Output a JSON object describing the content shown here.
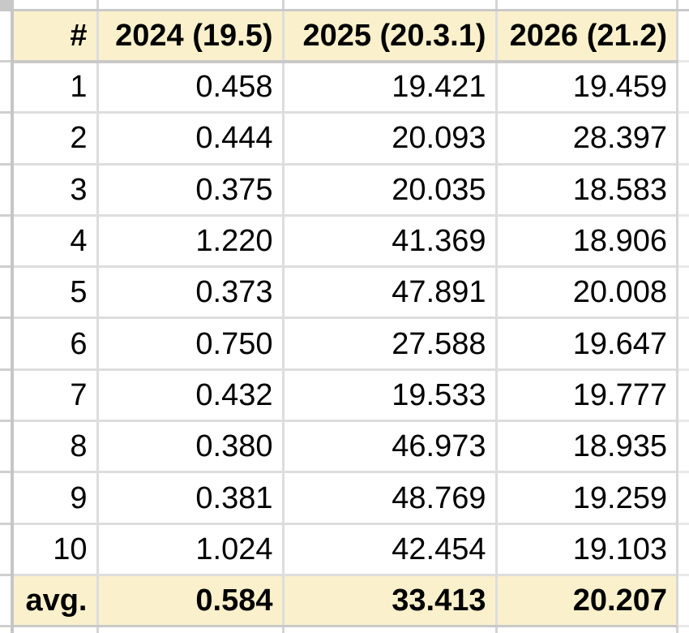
{
  "chart_data": {
    "type": "table",
    "columns": [
      "#",
      "2024 (19.5)",
      "2025 (20.3.1)",
      "2026 (21.2)"
    ],
    "rows": [
      [
        "1",
        "0.458",
        "19.421",
        "19.459"
      ],
      [
        "2",
        "0.444",
        "20.093",
        "28.397"
      ],
      [
        "3",
        "0.375",
        "20.035",
        "18.583"
      ],
      [
        "4",
        "1.220",
        "41.369",
        "18.906"
      ],
      [
        "5",
        "0.373",
        "47.891",
        "20.008"
      ],
      [
        "6",
        "0.750",
        "27.588",
        "19.647"
      ],
      [
        "7",
        "0.432",
        "19.533",
        "19.777"
      ],
      [
        "8",
        "0.380",
        "46.973",
        "18.935"
      ],
      [
        "9",
        "0.381",
        "48.769",
        "19.259"
      ],
      [
        "10",
        "1.024",
        "42.454",
        "19.103"
      ]
    ],
    "footer_row": [
      "avg.",
      "0.584",
      "33.413",
      "20.207"
    ],
    "layout": {
      "header_row_shaded": true,
      "footer_row_shaded": true,
      "footer_bold": true,
      "header_bold": true,
      "number_alignment": "right",
      "grid": true
    }
  },
  "colors": {
    "header_bg": "#FAF0CB",
    "footer_bg": "#FAF0CB",
    "gridline": "#DDDDDD",
    "edge_line": "#C9C9C9",
    "divider": "#C6C6C6",
    "text": "#000000"
  }
}
